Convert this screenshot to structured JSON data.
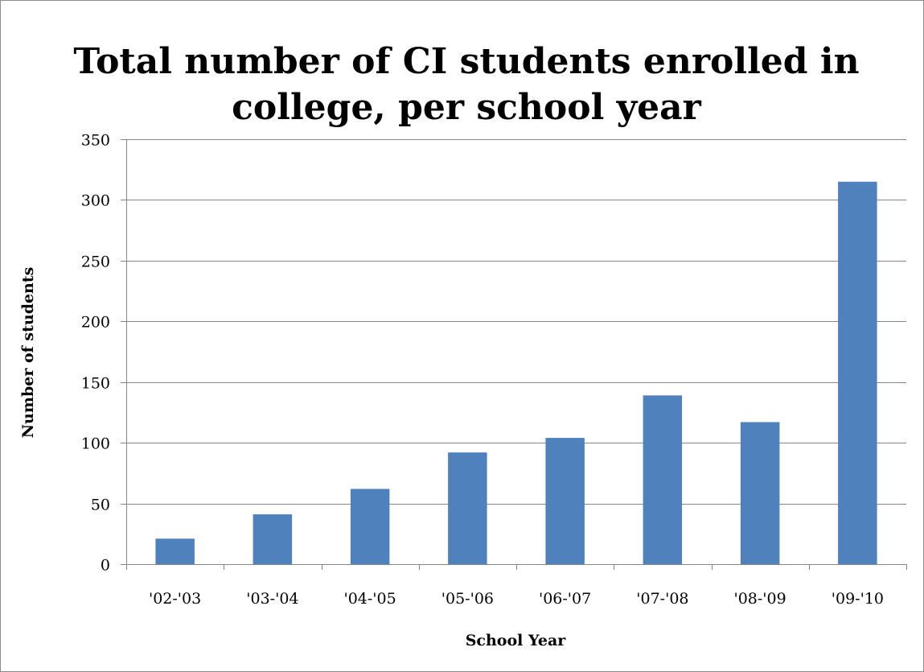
{
  "chart_data": {
    "type": "bar",
    "title": "Total number of CI students enrolled in college, per school year",
    "title_lines": [
      "Total number of CI students enrolled in",
      "college, per school year"
    ],
    "xlabel": "School Year",
    "ylabel": "Number of students",
    "categories": [
      "'02-'03",
      "'03-'04",
      "'04-'05",
      "'05-'06",
      "'06-'07",
      "'07-'08",
      "'08-'09",
      "'09-'10"
    ],
    "values": [
      21,
      41,
      62,
      92,
      104,
      139,
      117,
      315
    ],
    "ylim": [
      0,
      350
    ],
    "yticks": [
      0,
      50,
      100,
      150,
      200,
      250,
      300,
      350
    ],
    "ytick_labels": [
      "0",
      "50",
      "100",
      "150",
      "200",
      "250",
      "300",
      "350"
    ],
    "grid": true,
    "legend": "none",
    "colors": {
      "bar": "#4f81bd",
      "grid": "#868686",
      "axis": "#868686",
      "text": "#000000"
    }
  }
}
